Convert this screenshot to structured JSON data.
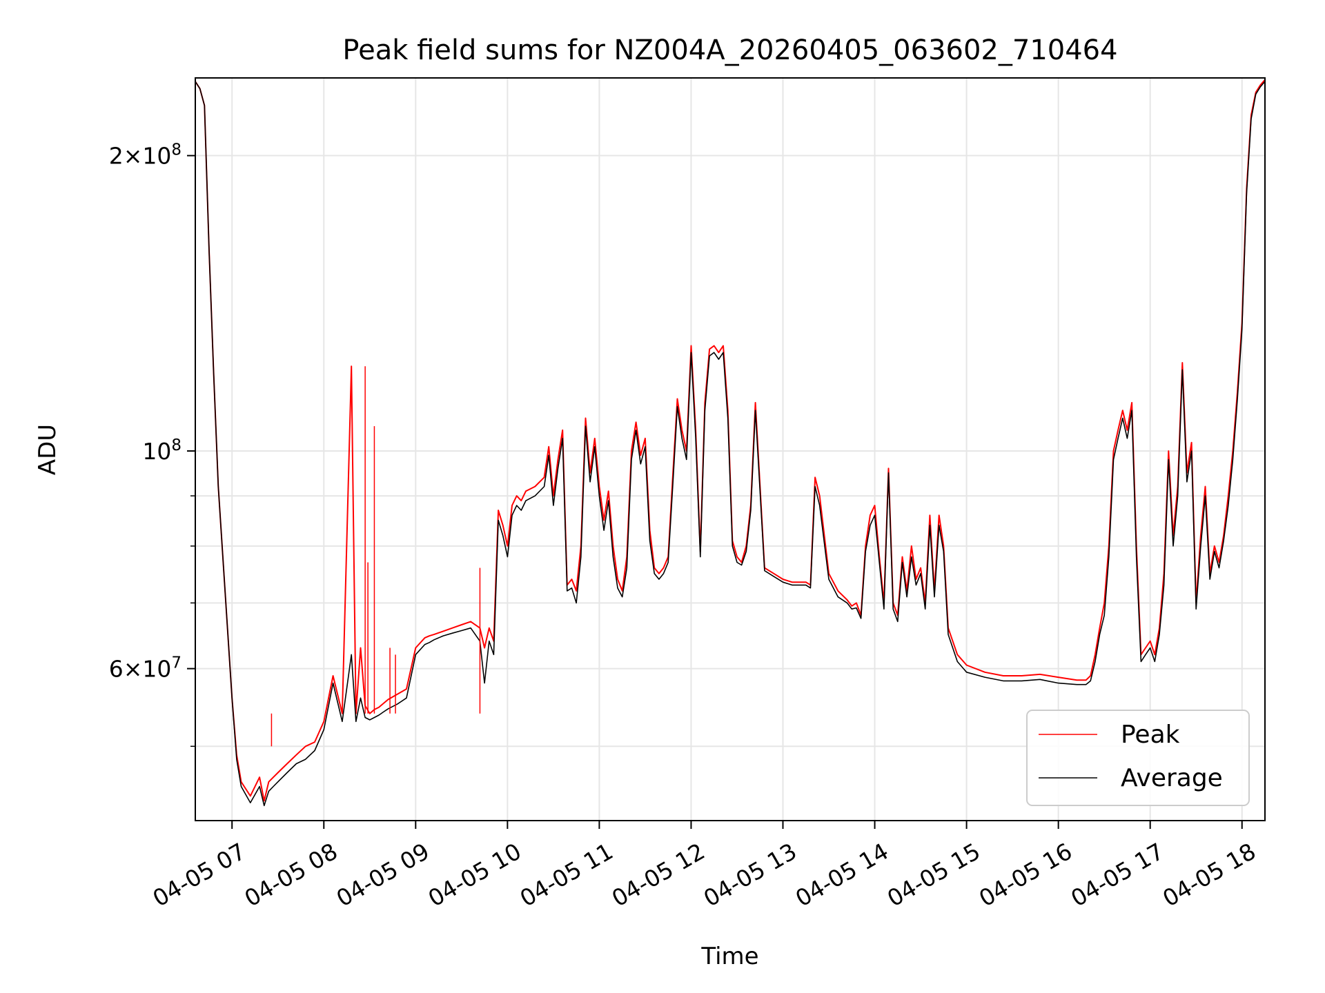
{
  "chart_data": {
    "type": "line",
    "title": "Peak field sums for NZ004A_20260405_063602_710464",
    "xlabel": "Time",
    "ylabel": "ADU",
    "yscale": "log",
    "ylim": [
      42000000,
      240000000
    ],
    "xlim": [
      6.6,
      18.25
    ],
    "grid": true,
    "legend_position": "lower-right",
    "x_ticks": [
      {
        "value": 7,
        "label": "04-05 07"
      },
      {
        "value": 8,
        "label": "04-05 08"
      },
      {
        "value": 9,
        "label": "04-05 09"
      },
      {
        "value": 10,
        "label": "04-05 10"
      },
      {
        "value": 11,
        "label": "04-05 11"
      },
      {
        "value": 12,
        "label": "04-05 12"
      },
      {
        "value": 13,
        "label": "04-05 13"
      },
      {
        "value": 14,
        "label": "04-05 14"
      },
      {
        "value": 15,
        "label": "04-05 15"
      },
      {
        "value": 16,
        "label": "04-05 16"
      },
      {
        "value": 17,
        "label": "04-05 17"
      },
      {
        "value": 18,
        "label": "04-05 18"
      }
    ],
    "y_ticks_major": [
      {
        "value": 60000000,
        "base": "6",
        "exp": "7"
      },
      {
        "value": 100000000,
        "base": "10",
        "exp": "8"
      },
      {
        "value": 200000000,
        "base": "2",
        "exp": "8"
      }
    ],
    "y_ticks_minor": [
      50000000,
      70000000,
      80000000,
      90000000
    ],
    "series": [
      {
        "name": "Peak",
        "color": "#ff0000",
        "x": [
          6.6,
          6.65,
          6.7,
          6.75,
          6.8,
          6.85,
          6.9,
          6.95,
          7.0,
          7.05,
          7.1,
          7.2,
          7.3,
          7.35,
          7.4,
          7.45,
          7.5,
          7.6,
          7.7,
          7.8,
          7.9,
          8.0,
          8.1,
          8.2,
          8.3,
          8.35,
          8.4,
          8.45,
          8.5,
          8.55,
          8.6,
          8.65,
          8.7,
          8.8,
          8.9,
          9.0,
          9.1,
          9.15,
          9.2,
          9.3,
          9.4,
          9.5,
          9.6,
          9.7,
          9.75,
          9.8,
          9.85,
          9.9,
          9.95,
          10.0,
          10.05,
          10.1,
          10.15,
          10.2,
          10.3,
          10.4,
          10.45,
          10.5,
          10.55,
          10.6,
          10.65,
          10.7,
          10.75,
          10.8,
          10.85,
          10.9,
          10.95,
          11.0,
          11.05,
          11.1,
          11.15,
          11.2,
          11.25,
          11.3,
          11.35,
          11.4,
          11.45,
          11.5,
          11.55,
          11.6,
          11.65,
          11.7,
          11.75,
          11.8,
          11.85,
          11.9,
          11.95,
          12.0,
          12.05,
          12.1,
          12.15,
          12.2,
          12.25,
          12.3,
          12.35,
          12.4,
          12.45,
          12.5,
          12.55,
          12.6,
          12.65,
          12.7,
          12.8,
          12.9,
          13.0,
          13.1,
          13.2,
          13.25,
          13.3,
          13.35,
          13.4,
          13.5,
          13.6,
          13.7,
          13.75,
          13.8,
          13.85,
          13.9,
          13.95,
          14.0,
          14.05,
          14.1,
          14.15,
          14.2,
          14.25,
          14.3,
          14.35,
          14.4,
          14.45,
          14.5,
          14.55,
          14.6,
          14.65,
          14.7,
          14.75,
          14.8,
          14.9,
          15.0,
          15.2,
          15.4,
          15.6,
          15.8,
          16.0,
          16.2,
          16.3,
          16.35,
          16.4,
          16.45,
          16.5,
          16.55,
          16.6,
          16.65,
          16.7,
          16.75,
          16.8,
          16.85,
          16.9,
          16.95,
          17.0,
          17.05,
          17.1,
          17.15,
          17.2,
          17.25,
          17.3,
          17.35,
          17.4,
          17.45,
          17.5,
          17.55,
          17.6,
          17.65,
          17.7,
          17.75,
          17.8,
          17.85,
          17.9,
          17.95,
          18.0,
          18.05,
          18.1,
          18.15,
          18.2,
          18.25
        ],
        "values": [
          238000000,
          234000000,
          225000000,
          160000000,
          120000000,
          92000000,
          78000000,
          66000000,
          56000000,
          49000000,
          46000000,
          44500000,
          46500000,
          44000000,
          46000000,
          46500000,
          47000000,
          48000000,
          49000000,
          50000000,
          50500000,
          53000000,
          59000000,
          54000000,
          122000000,
          54000000,
          63000000,
          55000000,
          54000000,
          54500000,
          54800000,
          55300000,
          55800000,
          56500000,
          57200000,
          63000000,
          64500000,
          64800000,
          65000000,
          65500000,
          66000000,
          66500000,
          67000000,
          66000000,
          63000000,
          66000000,
          64000000,
          87000000,
          84000000,
          80000000,
          88000000,
          90000000,
          89000000,
          91000000,
          92000000,
          94000000,
          101000000,
          90000000,
          98000000,
          105000000,
          73000000,
          74000000,
          72000000,
          80000000,
          108000000,
          95000000,
          103000000,
          92000000,
          85000000,
          91000000,
          80000000,
          74000000,
          72000000,
          78000000,
          100000000,
          107000000,
          99000000,
          103000000,
          83000000,
          76000000,
          75000000,
          76000000,
          78000000,
          94000000,
          113000000,
          105000000,
          100000000,
          128000000,
          105000000,
          79000000,
          112000000,
          127000000,
          128000000,
          126000000,
          128000000,
          110000000,
          81000000,
          78000000,
          77000000,
          80000000,
          88000000,
          112000000,
          76000000,
          75000000,
          74000000,
          73500000,
          73500000,
          73500000,
          73000000,
          94000000,
          90000000,
          75000000,
          72000000,
          70500000,
          69500000,
          70000000,
          68000000,
          80000000,
          86000000,
          88000000,
          78000000,
          70000000,
          96000000,
          70000000,
          68000000,
          78000000,
          72000000,
          80000000,
          74000000,
          76000000,
          70000000,
          86000000,
          72000000,
          86000000,
          80000000,
          66000000,
          62000000,
          60500000,
          59500000,
          59000000,
          59000000,
          59200000,
          58800000,
          58400000,
          58400000,
          59000000,
          62000000,
          66000000,
          70000000,
          80000000,
          100000000,
          105000000,
          110000000,
          105000000,
          112000000,
          80000000,
          62000000,
          63000000,
          64000000,
          62000000,
          66000000,
          75000000,
          100000000,
          82000000,
          92000000,
          123000000,
          95000000,
          102000000,
          70000000,
          82000000,
          92000000,
          75000000,
          80000000,
          77000000,
          82000000,
          90000000,
          100000000,
          115000000,
          135000000,
          185000000,
          220000000,
          232000000,
          236000000,
          239000000
        ]
      },
      {
        "name": "Average",
        "color": "#000000",
        "x": [
          6.6,
          6.65,
          6.7,
          6.75,
          6.8,
          6.85,
          6.9,
          6.95,
          7.0,
          7.05,
          7.1,
          7.2,
          7.3,
          7.35,
          7.4,
          7.45,
          7.5,
          7.6,
          7.7,
          7.8,
          7.9,
          8.0,
          8.1,
          8.2,
          8.3,
          8.35,
          8.4,
          8.45,
          8.5,
          8.55,
          8.6,
          8.65,
          8.7,
          8.8,
          8.9,
          9.0,
          9.1,
          9.15,
          9.2,
          9.3,
          9.4,
          9.5,
          9.6,
          9.7,
          9.75,
          9.8,
          9.85,
          9.9,
          9.95,
          10.0,
          10.05,
          10.1,
          10.15,
          10.2,
          10.3,
          10.4,
          10.45,
          10.5,
          10.55,
          10.6,
          10.65,
          10.7,
          10.75,
          10.8,
          10.85,
          10.9,
          10.95,
          11.0,
          11.05,
          11.1,
          11.15,
          11.2,
          11.25,
          11.3,
          11.35,
          11.4,
          11.45,
          11.5,
          11.55,
          11.6,
          11.65,
          11.7,
          11.75,
          11.8,
          11.85,
          11.9,
          11.95,
          12.0,
          12.05,
          12.1,
          12.15,
          12.2,
          12.25,
          12.3,
          12.35,
          12.4,
          12.45,
          12.5,
          12.55,
          12.6,
          12.65,
          12.7,
          12.8,
          12.9,
          13.0,
          13.1,
          13.2,
          13.25,
          13.3,
          13.35,
          13.4,
          13.5,
          13.6,
          13.7,
          13.75,
          13.8,
          13.85,
          13.9,
          13.95,
          14.0,
          14.05,
          14.1,
          14.15,
          14.2,
          14.25,
          14.3,
          14.35,
          14.4,
          14.45,
          14.5,
          14.55,
          14.6,
          14.65,
          14.7,
          14.75,
          14.8,
          14.9,
          15.0,
          15.2,
          15.4,
          15.6,
          15.8,
          16.0,
          16.2,
          16.3,
          16.35,
          16.4,
          16.45,
          16.5,
          16.55,
          16.6,
          16.65,
          16.7,
          16.75,
          16.8,
          16.85,
          16.9,
          16.95,
          17.0,
          17.05,
          17.1,
          17.15,
          17.2,
          17.25,
          17.3,
          17.35,
          17.4,
          17.45,
          17.5,
          17.55,
          17.6,
          17.65,
          17.7,
          17.75,
          17.8,
          17.85,
          17.9,
          17.95,
          18.0,
          18.05,
          18.1,
          18.15,
          18.2,
          18.25
        ],
        "values": [
          238000000,
          234000000,
          225000000,
          160000000,
          120000000,
          92000000,
          78000000,
          66000000,
          56000000,
          48500000,
          45500000,
          43800000,
          45500000,
          43500000,
          45000000,
          45500000,
          46000000,
          47000000,
          48000000,
          48500000,
          49500000,
          52000000,
          58000000,
          53000000,
          62000000,
          53000000,
          56000000,
          53500000,
          53200000,
          53500000,
          53800000,
          54200000,
          54600000,
          55200000,
          56000000,
          62000000,
          63500000,
          63800000,
          64200000,
          64800000,
          65200000,
          65600000,
          66000000,
          64000000,
          58000000,
          64000000,
          62000000,
          85000000,
          82000000,
          78000000,
          86000000,
          88000000,
          87000000,
          89000000,
          90000000,
          92000000,
          99000000,
          88000000,
          96000000,
          103000000,
          72000000,
          72500000,
          70000000,
          78000000,
          106000000,
          93000000,
          101000000,
          90000000,
          83000000,
          89000000,
          78000000,
          72500000,
          71000000,
          76000000,
          98000000,
          105000000,
          97000000,
          101000000,
          81000000,
          75000000,
          74000000,
          75000000,
          77000000,
          92000000,
          111000000,
          103000000,
          98000000,
          126000000,
          103000000,
          78000000,
          110000000,
          125000000,
          126000000,
          124000000,
          126000000,
          108000000,
          80000000,
          77000000,
          76500000,
          79000000,
          87000000,
          110000000,
          75500000,
          74500000,
          73500000,
          73000000,
          73000000,
          73000000,
          72500000,
          92000000,
          88000000,
          74000000,
          71000000,
          70000000,
          69000000,
          69200000,
          67500000,
          79000000,
          84000000,
          86000000,
          77000000,
          69000000,
          95000000,
          69000000,
          67000000,
          77000000,
          71000000,
          78000000,
          73000000,
          75000000,
          69000000,
          84000000,
          71000000,
          84000000,
          79000000,
          65000000,
          61000000,
          59500000,
          58800000,
          58300000,
          58300000,
          58500000,
          58000000,
          57800000,
          57800000,
          58300000,
          61000000,
          65000000,
          68000000,
          78000000,
          98000000,
          103000000,
          108000000,
          103000000,
          110000000,
          78000000,
          61000000,
          62000000,
          63000000,
          61000000,
          65000000,
          73000000,
          98000000,
          80000000,
          90000000,
          121000000,
          93000000,
          100000000,
          69000000,
          80000000,
          90000000,
          74000000,
          79000000,
          76000000,
          81000000,
          88000000,
          98000000,
          113000000,
          133000000,
          183000000,
          218000000,
          231000000,
          235000000,
          238000000
        ]
      }
    ],
    "spikes": [
      {
        "series": "Peak",
        "x": 8.45,
        "value": 122000000
      },
      {
        "series": "Peak",
        "x": 8.48,
        "value": 77000000
      },
      {
        "series": "Peak",
        "x": 8.55,
        "value": 106000000
      },
      {
        "series": "Peak",
        "x": 8.72,
        "value": 63000000
      },
      {
        "series": "Peak",
        "x": 8.78,
        "value": 62000000
      },
      {
        "series": "Peak",
        "x": 7.43,
        "value": 50000000
      },
      {
        "series": "Peak",
        "x": 9.7,
        "value": 76000000
      }
    ]
  }
}
